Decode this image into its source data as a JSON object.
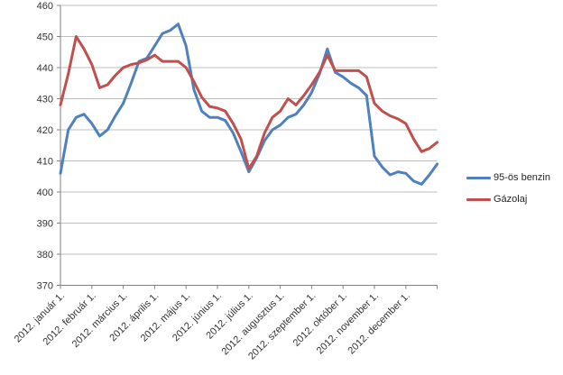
{
  "chart_data": {
    "type": "line",
    "title": "",
    "ylim": [
      370,
      460
    ],
    "y_ticks": [
      460,
      450,
      440,
      430,
      420,
      410,
      400,
      390,
      380,
      370
    ],
    "x_tick_labels": [
      "2012. január 1.",
      "2012. február 1.",
      "2012. március 1.",
      "2012. április 1.",
      "2012. május 1.",
      "2012. június 1.",
      "2012. július 1.",
      "2012. augusztus 1.",
      "2012. szeptember 1.",
      "2012. október 1.",
      "2012. november 1.",
      "2012. december 1."
    ],
    "grid": "horizontal",
    "legend_position": "right",
    "points_per_month": 4,
    "series": [
      {
        "name": "95-ös benzin",
        "color": "#4F81BD",
        "values": [
          406,
          420,
          424,
          425,
          422,
          418,
          420,
          424.5,
          428.5,
          435,
          442,
          443,
          447,
          451,
          452,
          454,
          447,
          433,
          426,
          424,
          424,
          423,
          419,
          413,
          406.5,
          411,
          416.5,
          420,
          421.5,
          424,
          425,
          428,
          432,
          438,
          446,
          438.5,
          437,
          435,
          433.5,
          431,
          411.5,
          408,
          405.5,
          406.5,
          406,
          403.5,
          402.5,
          405.5,
          409
        ]
      },
      {
        "name": "Gázolaj",
        "color": "#C0504D",
        "values": [
          428,
          438,
          450,
          446,
          441,
          433.5,
          434.5,
          437.5,
          440,
          441,
          441.5,
          442.5,
          444,
          442,
          442,
          442,
          440,
          435.5,
          430.5,
          427.5,
          427,
          426,
          422,
          417,
          407.5,
          411.5,
          419,
          424,
          426,
          430,
          428,
          431,
          434.5,
          438.5,
          444,
          439,
          439,
          439,
          439,
          437,
          428.5,
          426,
          424.5,
          423.5,
          422,
          417,
          413,
          414,
          416
        ]
      }
    ]
  },
  "colors": {
    "grid": "#BFBFBF",
    "axis": "#808080",
    "label": "#333333",
    "background": "#FFFFFF"
  }
}
